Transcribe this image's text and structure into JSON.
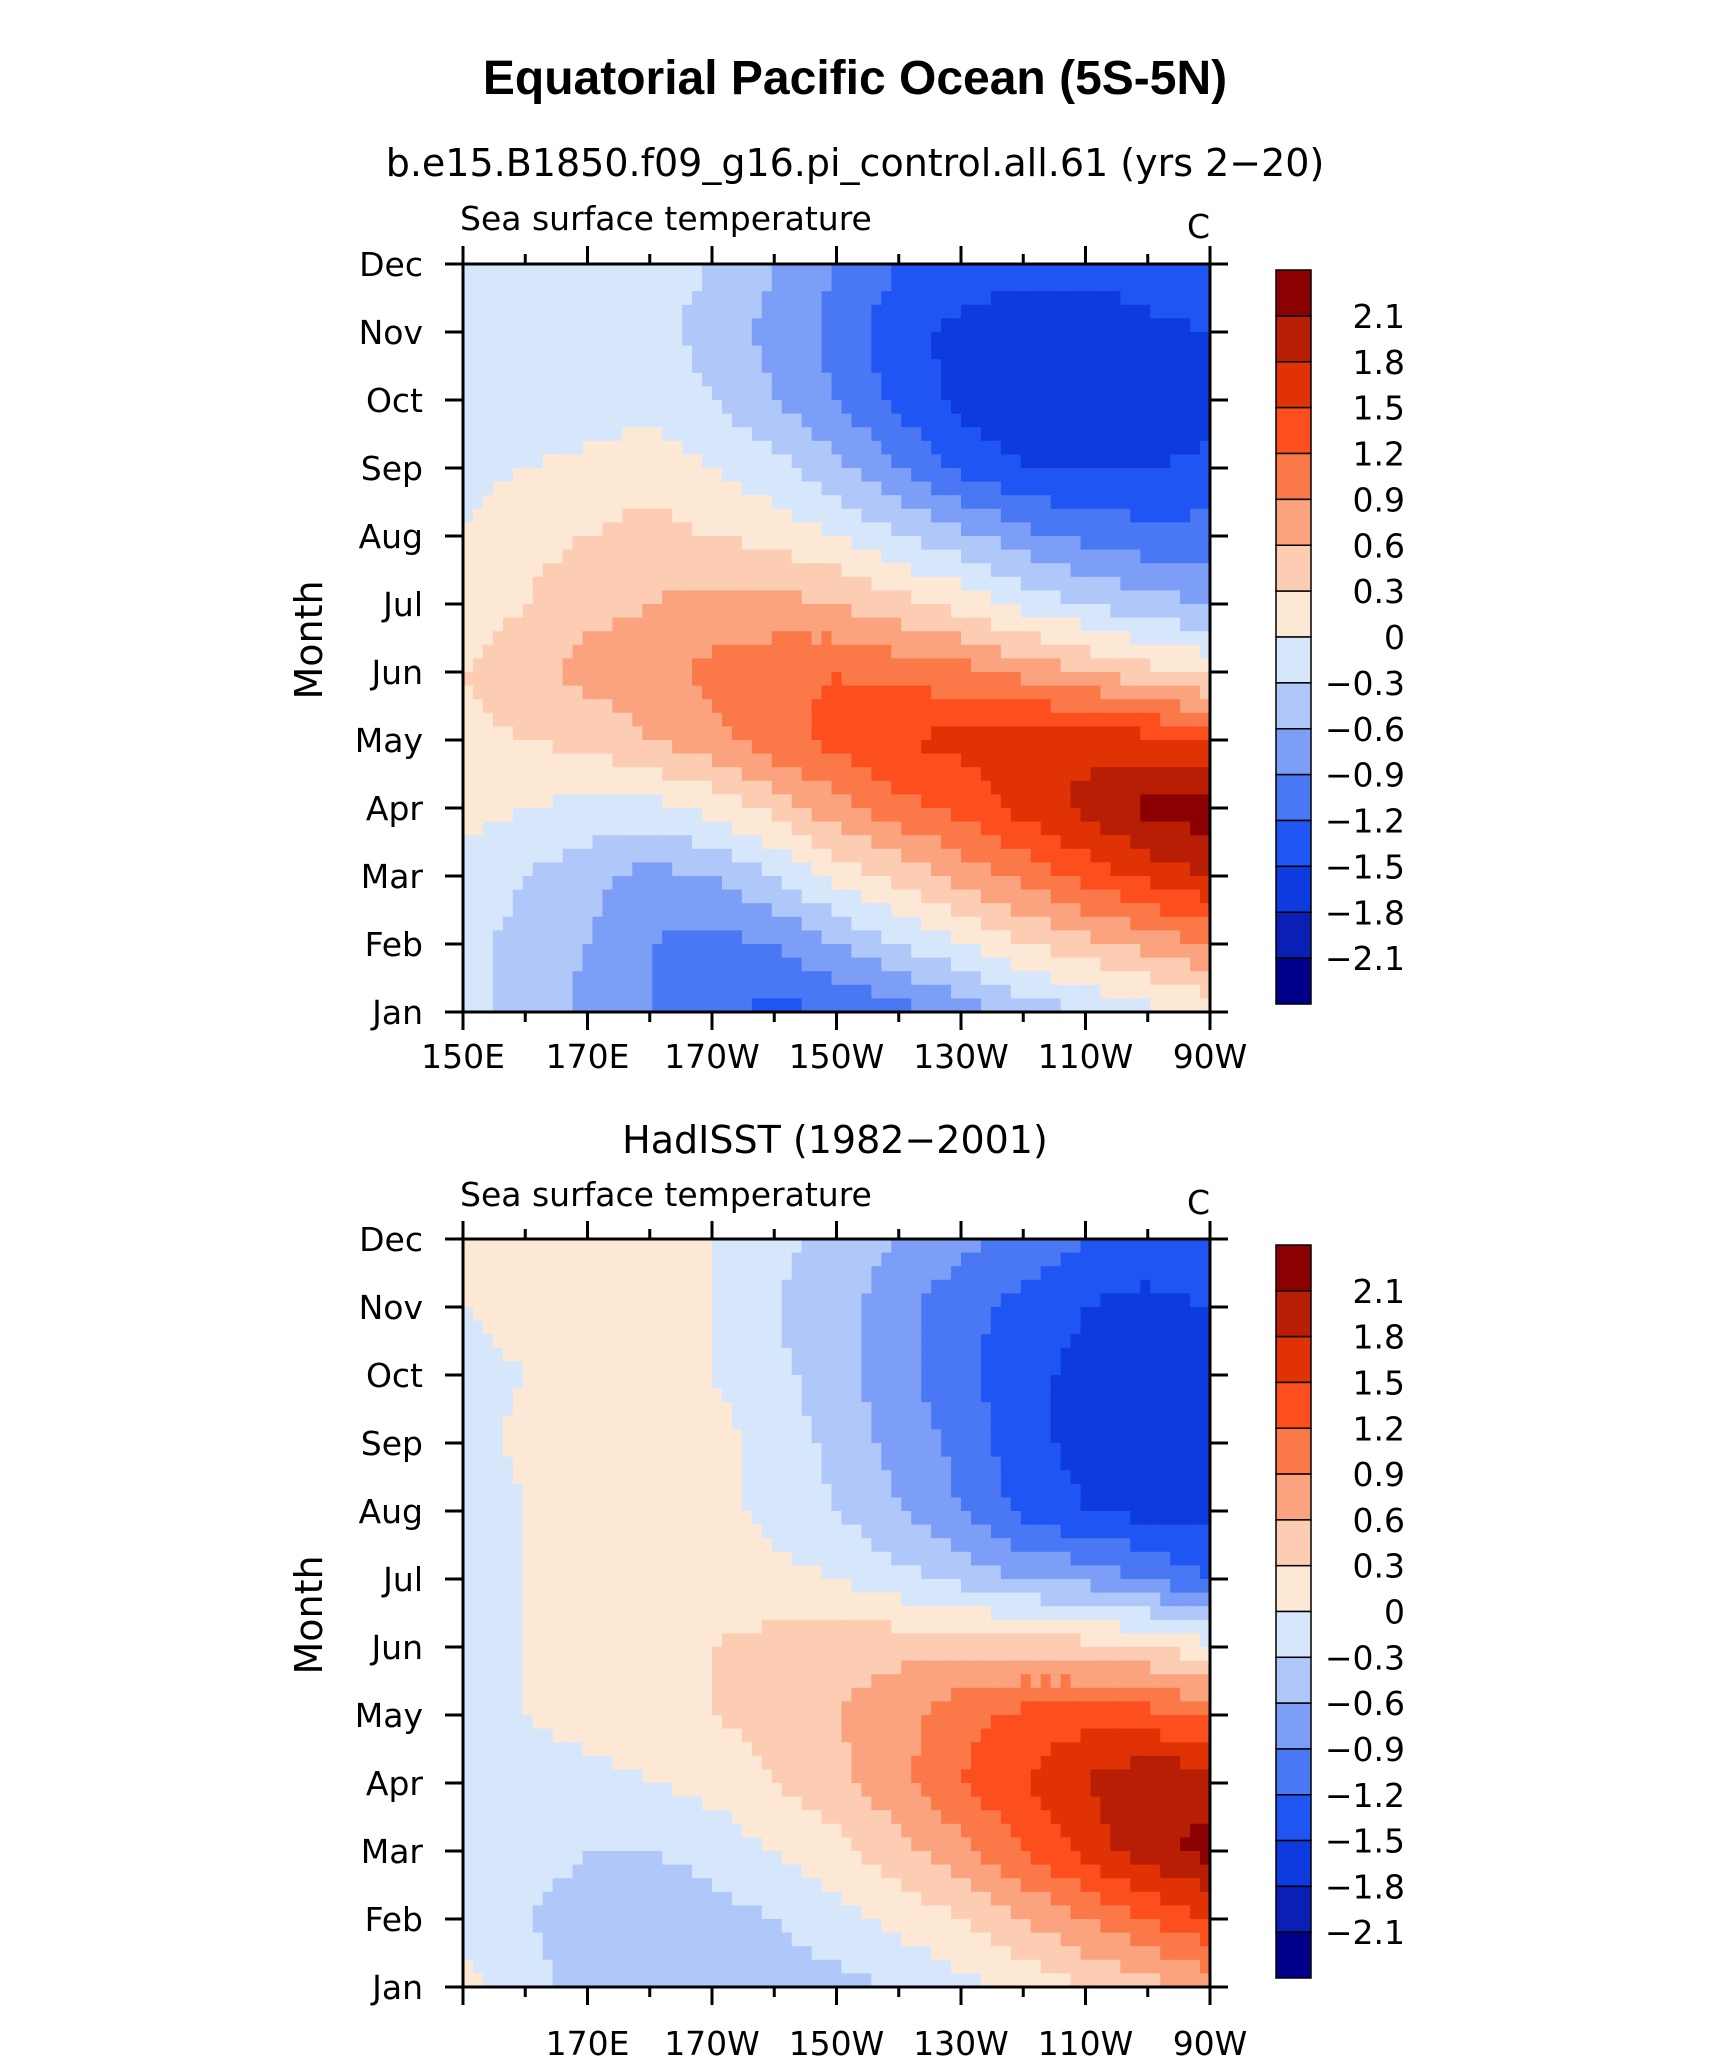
{
  "figure_title": "Equatorial Pacific Ocean (5S-5N)",
  "chart_data": [
    {
      "type": "heatmap",
      "title": "b.e15.B1850.f09_g16.pi_control.all.61 (yrs 2−20)",
      "left_string": "Sea surface temperature",
      "right_string": "C",
      "ylabel": "Month",
      "xlabel": "",
      "x_range_deg_east": [
        150,
        270
      ],
      "x_ticks": [
        {
          "lon": 150,
          "label": "150E"
        },
        {
          "lon": 170,
          "label": "170E"
        },
        {
          "lon": 190,
          "label": "170W"
        },
        {
          "lon": 210,
          "label": "150W"
        },
        {
          "lon": 230,
          "label": "130W"
        },
        {
          "lon": 250,
          "label": "110W"
        },
        {
          "lon": 270,
          "label": "90W"
        }
      ],
      "y_ticks": [
        "Jan",
        "Feb",
        "Mar",
        "Apr",
        "May",
        "Jun",
        "Jul",
        "Aug",
        "Sep",
        "Oct",
        "Nov",
        "Dec"
      ],
      "contour_levels": [
        -2.1,
        -1.8,
        -1.5,
        -1.2,
        -0.9,
        -0.6,
        -0.3,
        0,
        0.3,
        0.6,
        0.9,
        1.2,
        1.5,
        1.8,
        2.1
      ],
      "colorbar_labels": [
        "2.1",
        "1.8",
        "1.5",
        "1.2",
        "0.9",
        "0.6",
        "0.3",
        "0",
        "−0.3",
        "−0.6",
        "−0.9",
        "−1.2",
        "−1.5",
        "−1.8",
        "−2.1"
      ],
      "grid_lon": [
        150,
        160,
        170,
        180,
        190,
        200,
        210,
        220,
        230,
        240,
        250,
        260,
        270
      ],
      "grid_month": [
        "Jan",
        "Feb",
        "Mar",
        "Apr",
        "May",
        "Jun",
        "Jul",
        "Aug",
        "Sep",
        "Oct",
        "Nov",
        "Dec"
      ],
      "values": [
        [
          -0.2,
          -0.4,
          -0.7,
          -0.9,
          -1.1,
          -1.3,
          -1.2,
          -1.0,
          -0.8,
          -0.5,
          -0.3,
          -0.1,
          0.1
        ],
        [
          -0.2,
          -0.4,
          -0.6,
          -0.9,
          -1.0,
          -0.9,
          -0.6,
          -0.3,
          0.0,
          0.3,
          0.5,
          0.7,
          0.9
        ],
        [
          -0.1,
          -0.3,
          -0.5,
          -0.7,
          -0.6,
          -0.3,
          0.1,
          0.4,
          0.7,
          1.0,
          1.3,
          1.6,
          1.8
        ],
        [
          0.1,
          0.0,
          -0.1,
          -0.1,
          0.1,
          0.4,
          0.8,
          1.1,
          1.3,
          1.6,
          1.9,
          2.2,
          2.3
        ],
        [
          0.2,
          0.3,
          0.4,
          0.6,
          0.8,
          1.1,
          1.3,
          1.5,
          1.6,
          1.7,
          1.7,
          1.6,
          1.4
        ],
        [
          0.3,
          0.5,
          0.7,
          0.8,
          1.0,
          1.1,
          1.2,
          1.1,
          1.0,
          0.8,
          0.6,
          0.4,
          0.2
        ],
        [
          0.1,
          0.3,
          0.5,
          0.6,
          0.7,
          0.7,
          0.6,
          0.4,
          0.2,
          -0.1,
          -0.3,
          -0.5,
          -0.6
        ],
        [
          0.0,
          0.2,
          0.3,
          0.4,
          0.3,
          0.2,
          0.0,
          -0.3,
          -0.5,
          -0.8,
          -1.0,
          -1.1,
          -1.1
        ],
        [
          -0.1,
          0.0,
          0.1,
          0.2,
          0.0,
          -0.2,
          -0.5,
          -0.9,
          -1.3,
          -1.5,
          -1.5,
          -1.5,
          -1.4
        ],
        [
          -0.2,
          -0.2,
          -0.2,
          -0.1,
          -0.3,
          -0.6,
          -0.9,
          -1.3,
          -1.6,
          -1.7,
          -1.8,
          -1.8,
          -1.7
        ],
        [
          -0.2,
          -0.2,
          -0.2,
          -0.2,
          -0.4,
          -0.7,
          -1.0,
          -1.4,
          -1.6,
          -1.7,
          -1.7,
          -1.6,
          -1.5
        ],
        [
          -0.1,
          -0.1,
          -0.1,
          -0.2,
          -0.3,
          -0.6,
          -0.9,
          -1.2,
          -1.3,
          -1.4,
          -1.4,
          -1.3,
          -1.2
        ]
      ]
    },
    {
      "type": "heatmap",
      "title": "HadISST (1982−2001)",
      "left_string": "Sea surface temperature",
      "right_string": "C",
      "ylabel": "Month",
      "xlabel": "",
      "x_range_deg_east": [
        150,
        270
      ],
      "x_ticks": [
        {
          "lon": 170,
          "label": "170E"
        },
        {
          "lon": 190,
          "label": "170W"
        },
        {
          "lon": 210,
          "label": "150W"
        },
        {
          "lon": 230,
          "label": "130W"
        },
        {
          "lon": 250,
          "label": "110W"
        },
        {
          "lon": 270,
          "label": "90W"
        }
      ],
      "y_ticks": [
        "Jan",
        "Feb",
        "Mar",
        "Apr",
        "May",
        "Jun",
        "Jul",
        "Aug",
        "Sep",
        "Oct",
        "Nov",
        "Dec"
      ],
      "contour_levels": [
        -2.1,
        -1.8,
        -1.5,
        -1.2,
        -0.9,
        -0.6,
        -0.3,
        0,
        0.3,
        0.6,
        0.9,
        1.2,
        1.5,
        1.8,
        2.1
      ],
      "colorbar_labels": [
        "2.1",
        "1.8",
        "1.5",
        "1.2",
        "0.9",
        "0.6",
        "0.3",
        "0",
        "−0.3",
        "−0.6",
        "−0.9",
        "−1.2",
        "−1.5",
        "−1.8",
        "−2.1"
      ],
      "grid_lon": [
        150,
        160,
        170,
        180,
        190,
        200,
        210,
        220,
        230,
        240,
        250,
        260,
        270
      ],
      "grid_month": [
        "Jan",
        "Feb",
        "Mar",
        "Apr",
        "May",
        "Jun",
        "Jul",
        "Aug",
        "Sep",
        "Oct",
        "Nov",
        "Dec"
      ],
      "values": [
        [
          0.1,
          -0.2,
          -0.4,
          -0.5,
          -0.5,
          -0.5,
          -0.4,
          -0.3,
          -0.1,
          0.1,
          0.3,
          0.5,
          0.7
        ],
        [
          -0.1,
          -0.3,
          -0.4,
          -0.5,
          -0.4,
          -0.3,
          -0.1,
          0.1,
          0.3,
          0.6,
          0.9,
          1.2,
          1.5
        ],
        [
          -0.1,
          -0.2,
          -0.3,
          -0.3,
          -0.2,
          0.0,
          0.2,
          0.5,
          0.8,
          1.2,
          1.6,
          2.0,
          2.2
        ],
        [
          0.0,
          -0.1,
          -0.1,
          0.0,
          0.1,
          0.3,
          0.5,
          0.8,
          1.2,
          1.5,
          1.8,
          2.1,
          2.0
        ],
        [
          -0.1,
          0.0,
          0.1,
          0.2,
          0.3,
          0.4,
          0.6,
          0.8,
          1.1,
          1.3,
          1.4,
          1.3,
          1.1
        ],
        [
          -0.1,
          0.0,
          0.1,
          0.2,
          0.3,
          0.4,
          0.5,
          0.5,
          0.5,
          0.5,
          0.4,
          0.3,
          0.1
        ],
        [
          -0.2,
          0.0,
          0.1,
          0.2,
          0.2,
          0.1,
          0.0,
          -0.2,
          -0.4,
          -0.6,
          -0.7,
          -0.9,
          -1.2
        ],
        [
          -0.3,
          0.0,
          0.2,
          0.2,
          0.1,
          -0.1,
          -0.3,
          -0.6,
          -0.9,
          -1.3,
          -1.5,
          -1.6,
          -1.6
        ],
        [
          -0.2,
          0.1,
          0.2,
          0.3,
          0.1,
          -0.1,
          -0.4,
          -0.7,
          -1.0,
          -1.4,
          -1.6,
          -1.7,
          -1.7
        ],
        [
          -0.1,
          0.0,
          0.1,
          0.2,
          0.0,
          -0.2,
          -0.5,
          -0.8,
          -1.1,
          -1.4,
          -1.6,
          -1.7,
          -1.7
        ],
        [
          0.0,
          0.1,
          0.1,
          0.1,
          0.0,
          -0.3,
          -0.5,
          -0.8,
          -1.1,
          -1.3,
          -1.5,
          -1.6,
          -1.5
        ],
        [
          0.0,
          0.1,
          0.1,
          0.1,
          0.0,
          -0.2,
          -0.4,
          -0.6,
          -0.8,
          -1.0,
          -1.2,
          -1.3,
          -1.2
        ]
      ]
    }
  ],
  "palette": {
    "blues": [
      "#00008a",
      "#0a1fb5",
      "#0d3be0",
      "#1f55f2",
      "#4a78f5",
      "#7c9ef7",
      "#b0c7fa",
      "#d6e7fc"
    ],
    "reds": [
      "#fde8d6",
      "#fccdb2",
      "#fba37e",
      "#fb7848",
      "#fd4f1e",
      "#e03205",
      "#b81d05",
      "#8b0000"
    ]
  }
}
